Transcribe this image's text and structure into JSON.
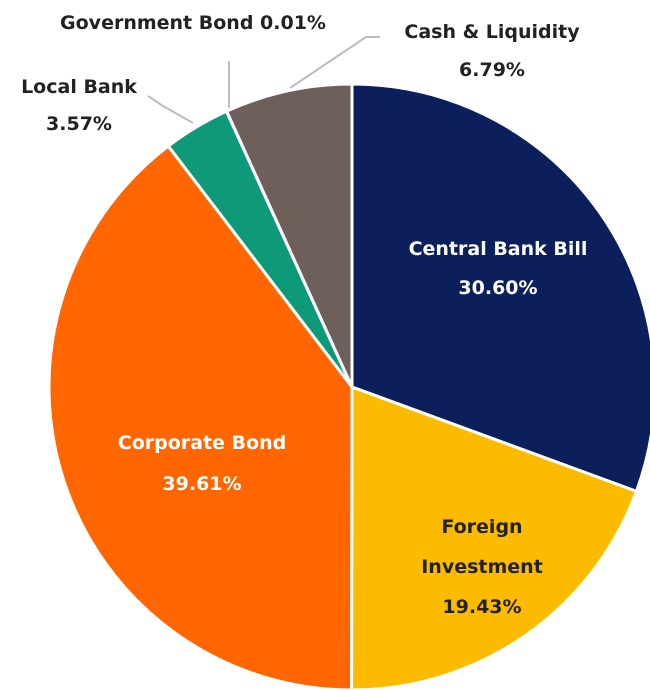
{
  "chart_data": {
    "type": "pie",
    "categories": [
      "Central Bank Bill",
      "Foreign Investment",
      "Corporate Bond",
      "Local Bank",
      "Government Bond",
      "Cash & Liquidity"
    ],
    "values": [
      30.6,
      19.43,
      39.61,
      3.57,
      0.01,
      6.79
    ],
    "value_labels": [
      "30.60%",
      "19.43%",
      "39.61%",
      "3.57%",
      "0.01%",
      "6.79%"
    ],
    "colors": [
      "#0b1f5c",
      "#fdbb00",
      "#ff6600",
      "#0e9a78",
      "#8b7d79",
      "#6f5f5b"
    ],
    "start": "12 o'clock",
    "direction": "clockwise"
  }
}
